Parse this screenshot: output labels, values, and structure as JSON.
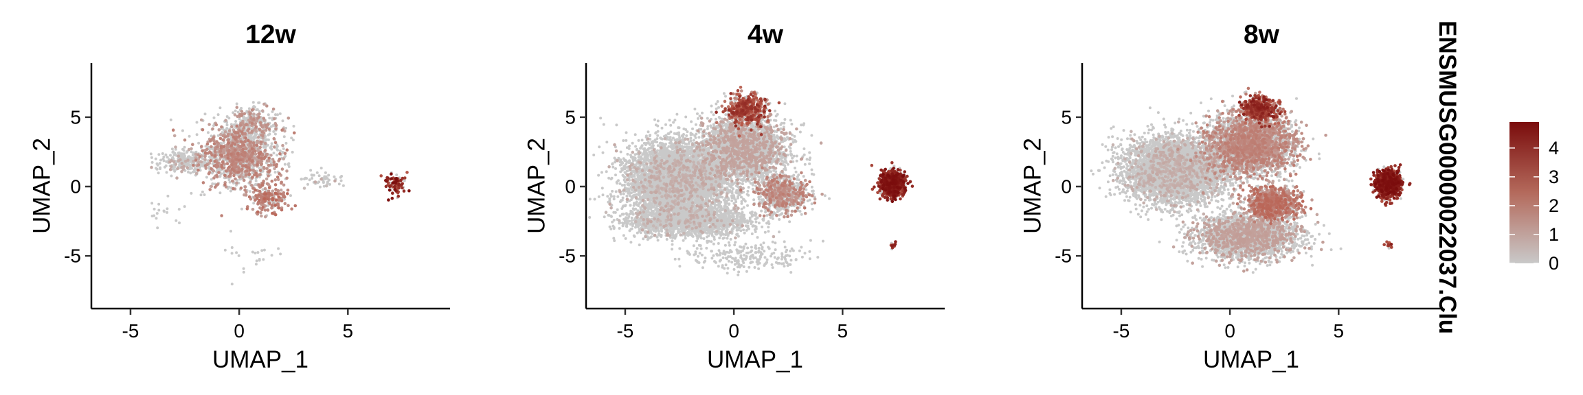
{
  "chart_data": [
    {
      "type": "scatter",
      "title": "12w",
      "xlabel": "UMAP_1",
      "ylabel": "UMAP_2",
      "xlim": [
        -6.8,
        9.7
      ],
      "ylim": [
        -8.8,
        8.9
      ],
      "xticks": [
        -5,
        0,
        5
      ],
      "yticks": [
        -5,
        0,
        5
      ],
      "tick_labels_x": [
        "-5",
        "0",
        "5"
      ],
      "tick_labels_y": [
        "-5",
        "0",
        "5"
      ],
      "clusters": [
        {
          "cx": 0.0,
          "cy": 2.2,
          "sx": 1.5,
          "sy": 1.8,
          "n": 1300,
          "expr": [
            0.05,
            0.35
          ]
        },
        {
          "cx": -2.5,
          "cy": 1.8,
          "sx": 1.0,
          "sy": 0.7,
          "n": 260,
          "expr": [
            0.02,
            0.12
          ]
        },
        {
          "cx": 1.3,
          "cy": -0.8,
          "sx": 0.8,
          "sy": 0.9,
          "n": 200,
          "expr": [
            0.05,
            0.45
          ]
        },
        {
          "cx": 0.6,
          "cy": 4.5,
          "sx": 1.0,
          "sy": 1.1,
          "n": 300,
          "expr": [
            0.0,
            0.28
          ]
        },
        {
          "cx": 3.8,
          "cy": 0.5,
          "sx": 0.8,
          "sy": 0.5,
          "n": 50,
          "expr": [
            0.0,
            0.05
          ]
        },
        {
          "cx": 7.2,
          "cy": 0.2,
          "sx": 0.4,
          "sy": 0.65,
          "n": 90,
          "expr": [
            0.5,
            1.0
          ]
        },
        {
          "cx": 0.2,
          "cy": -5.0,
          "sx": 1.5,
          "sy": 1.0,
          "n": 22,
          "expr": [
            0.0,
            0.0
          ]
        },
        {
          "cx": -3.5,
          "cy": -1.8,
          "sx": 1.0,
          "sy": 1.0,
          "n": 18,
          "expr": [
            0.0,
            0.0
          ]
        }
      ],
      "high_expression_region": "clusters at UMAP_1 ~7, UMAP_2 ~0 and around UMAP_1 ~0, UMAP_2 ~3"
    },
    {
      "type": "scatter",
      "title": "4w",
      "xlabel": "UMAP_1",
      "ylabel": "UMAP_2",
      "xlim": [
        -6.8,
        9.7
      ],
      "ylim": [
        -8.8,
        8.9
      ],
      "xticks": [
        -5,
        0,
        5
      ],
      "yticks": [
        -5,
        0,
        5
      ],
      "tick_labels_x": [
        "-5",
        "0",
        "5"
      ],
      "tick_labels_y": [
        "-5",
        "0",
        "5"
      ],
      "clusters": [
        {
          "cx": -2.5,
          "cy": 0.5,
          "sx": 2.0,
          "sy": 2.3,
          "n": 5200,
          "expr": [
            0.0,
            0.08
          ]
        },
        {
          "cx": 0.5,
          "cy": 2.8,
          "sx": 1.6,
          "sy": 1.8,
          "n": 2600,
          "expr": [
            0.0,
            0.18
          ]
        },
        {
          "cx": 0.6,
          "cy": 5.5,
          "sx": 0.8,
          "sy": 0.9,
          "n": 500,
          "expr": [
            0.2,
            0.8
          ]
        },
        {
          "cx": -2.0,
          "cy": -2.5,
          "sx": 2.4,
          "sy": 0.9,
          "n": 1800,
          "expr": [
            0.0,
            0.06
          ]
        },
        {
          "cx": 2.2,
          "cy": -0.5,
          "sx": 1.0,
          "sy": 1.2,
          "n": 700,
          "expr": [
            0.05,
            0.35
          ]
        },
        {
          "cx": 7.3,
          "cy": 0.2,
          "sx": 0.45,
          "sy": 0.75,
          "n": 1100,
          "expr": [
            0.55,
            1.0
          ]
        },
        {
          "cx": 0.5,
          "cy": -5.0,
          "sx": 2.5,
          "sy": 0.9,
          "n": 220,
          "expr": [
            0.0,
            0.0
          ]
        },
        {
          "cx": 7.3,
          "cy": -4.2,
          "sx": 0.12,
          "sy": 0.2,
          "n": 14,
          "expr": [
            0.5,
            0.9
          ]
        }
      ],
      "high_expression_region": "cluster at UMAP_1 ~7, UMAP_2 ~0 and top region near UMAP_1 ~0, UMAP_2 ~6"
    },
    {
      "type": "scatter",
      "title": "8w",
      "xlabel": "UMAP_1",
      "ylabel": "UMAP_2",
      "xlim": [
        -6.8,
        9.7
      ],
      "ylim": [
        -8.8,
        8.9
      ],
      "xticks": [
        -5,
        0,
        5
      ],
      "yticks": [
        -5,
        0,
        5
      ],
      "tick_labels_x": [
        "-5",
        "0",
        "5"
      ],
      "tick_labels_y": [
        "-5",
        "0",
        "5"
      ],
      "clusters": [
        {
          "cx": -2.5,
          "cy": 1.2,
          "sx": 1.9,
          "sy": 1.9,
          "n": 4800,
          "expr": [
            0.0,
            0.08
          ]
        },
        {
          "cx": 1.0,
          "cy": 3.0,
          "sx": 1.6,
          "sy": 1.8,
          "n": 3200,
          "expr": [
            0.05,
            0.35
          ]
        },
        {
          "cx": 1.3,
          "cy": 5.6,
          "sx": 0.7,
          "sy": 0.7,
          "n": 500,
          "expr": [
            0.25,
            0.9
          ]
        },
        {
          "cx": 0.8,
          "cy": -3.6,
          "sx": 1.9,
          "sy": 1.3,
          "n": 2600,
          "expr": [
            0.0,
            0.2
          ]
        },
        {
          "cx": 2.0,
          "cy": -1.2,
          "sx": 1.0,
          "sy": 1.0,
          "n": 900,
          "expr": [
            0.1,
            0.45
          ]
        },
        {
          "cx": 7.3,
          "cy": 0.2,
          "sx": 0.45,
          "sy": 0.75,
          "n": 1100,
          "expr": [
            0.55,
            1.0
          ]
        },
        {
          "cx": 7.3,
          "cy": -4.2,
          "sx": 0.12,
          "sy": 0.2,
          "n": 14,
          "expr": [
            0.5,
            0.9
          ]
        }
      ],
      "high_expression_region": "cluster at UMAP_1 ~7, UMAP_2 ~0 and top region near UMAP_1 ~1.5, UMAP_2 ~6"
    }
  ],
  "legend": {
    "title": "ENSMUSG00000022037.Clu",
    "min": 0,
    "max": 4.9,
    "ticks": [
      0,
      1,
      2,
      3,
      4
    ],
    "tick_labels": [
      "0",
      "1",
      "2",
      "3",
      "4"
    ],
    "low_color": "#c9c9c9",
    "high_color": "#7a0c0c"
  },
  "colors": {
    "low": "#c9c9c9",
    "mid": "#b85a4a",
    "high": "#7a0c0c",
    "axis": "#000000",
    "background": "#ffffff"
  }
}
